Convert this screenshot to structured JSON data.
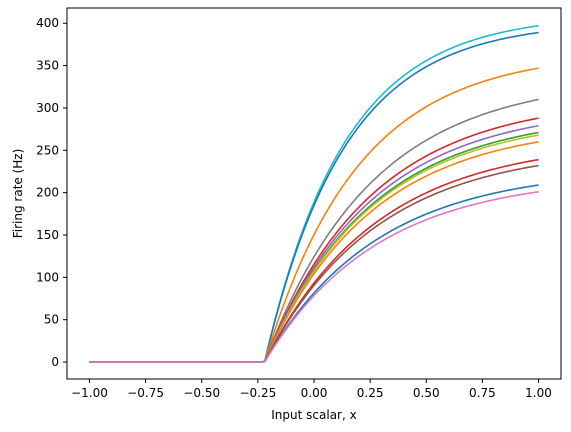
{
  "chart_data": {
    "type": "line",
    "title": "",
    "xlabel": "Input scalar, x",
    "ylabel": "Firing rate (Hz)",
    "xlim": [
      -1.1,
      1.1
    ],
    "ylim": [
      -20,
      418
    ],
    "xticks": [
      -1.0,
      -0.75,
      -0.5,
      -0.25,
      0.0,
      0.25,
      0.5,
      0.75,
      1.0
    ],
    "xtick_labels": [
      "−1.00",
      "−0.75",
      "−0.50",
      "−0.25",
      "0.00",
      "0.25",
      "0.50",
      "0.75",
      "1.00"
    ],
    "yticks": [
      0,
      50,
      100,
      150,
      200,
      250,
      300,
      350,
      400
    ],
    "ytick_labels": [
      "0",
      "50",
      "100",
      "150",
      "200",
      "250",
      "300",
      "350",
      "400"
    ],
    "grid": false,
    "legend": "none",
    "curve_model": "rectified-saturating",
    "threshold_x": -0.22,
    "series": [
      {
        "color": "#17becf",
        "threshold": -0.22,
        "value_at_1": 397,
        "curvature": 2.8
      },
      {
        "color": "#1f77b4",
        "threshold": -0.22,
        "value_at_1": 389,
        "curvature": 2.8
      },
      {
        "color": "#ff7f0e",
        "threshold": -0.22,
        "value_at_1": 347,
        "curvature": 2.4
      },
      {
        "color": "#7f7f7f",
        "threshold": -0.22,
        "value_at_1": 310,
        "curvature": 2.1
      },
      {
        "color": "#d62728",
        "threshold": -0.22,
        "value_at_1": 288,
        "curvature": 2.1
      },
      {
        "color": "#9467bd",
        "threshold": -0.22,
        "value_at_1": 279,
        "curvature": 2.1
      },
      {
        "color": "#2ca02c",
        "threshold": -0.22,
        "value_at_1": 271,
        "curvature": 2.1
      },
      {
        "color": "#bcbd22",
        "threshold": -0.22,
        "value_at_1": 268,
        "curvature": 2.1
      },
      {
        "color": "#ff7f0e",
        "threshold": -0.22,
        "value_at_1": 260,
        "curvature": 2.1
      },
      {
        "color": "#d62728",
        "threshold": -0.22,
        "value_at_1": 239,
        "curvature": 2.0
      },
      {
        "color": "#8c564b",
        "threshold": -0.22,
        "value_at_1": 232,
        "curvature": 2.0
      },
      {
        "color": "#1f77b4",
        "threshold": -0.22,
        "value_at_1": 209,
        "curvature": 2.0
      },
      {
        "color": "#e377c2",
        "threshold": -0.22,
        "value_at_1": 201,
        "curvature": 2.0
      }
    ]
  }
}
